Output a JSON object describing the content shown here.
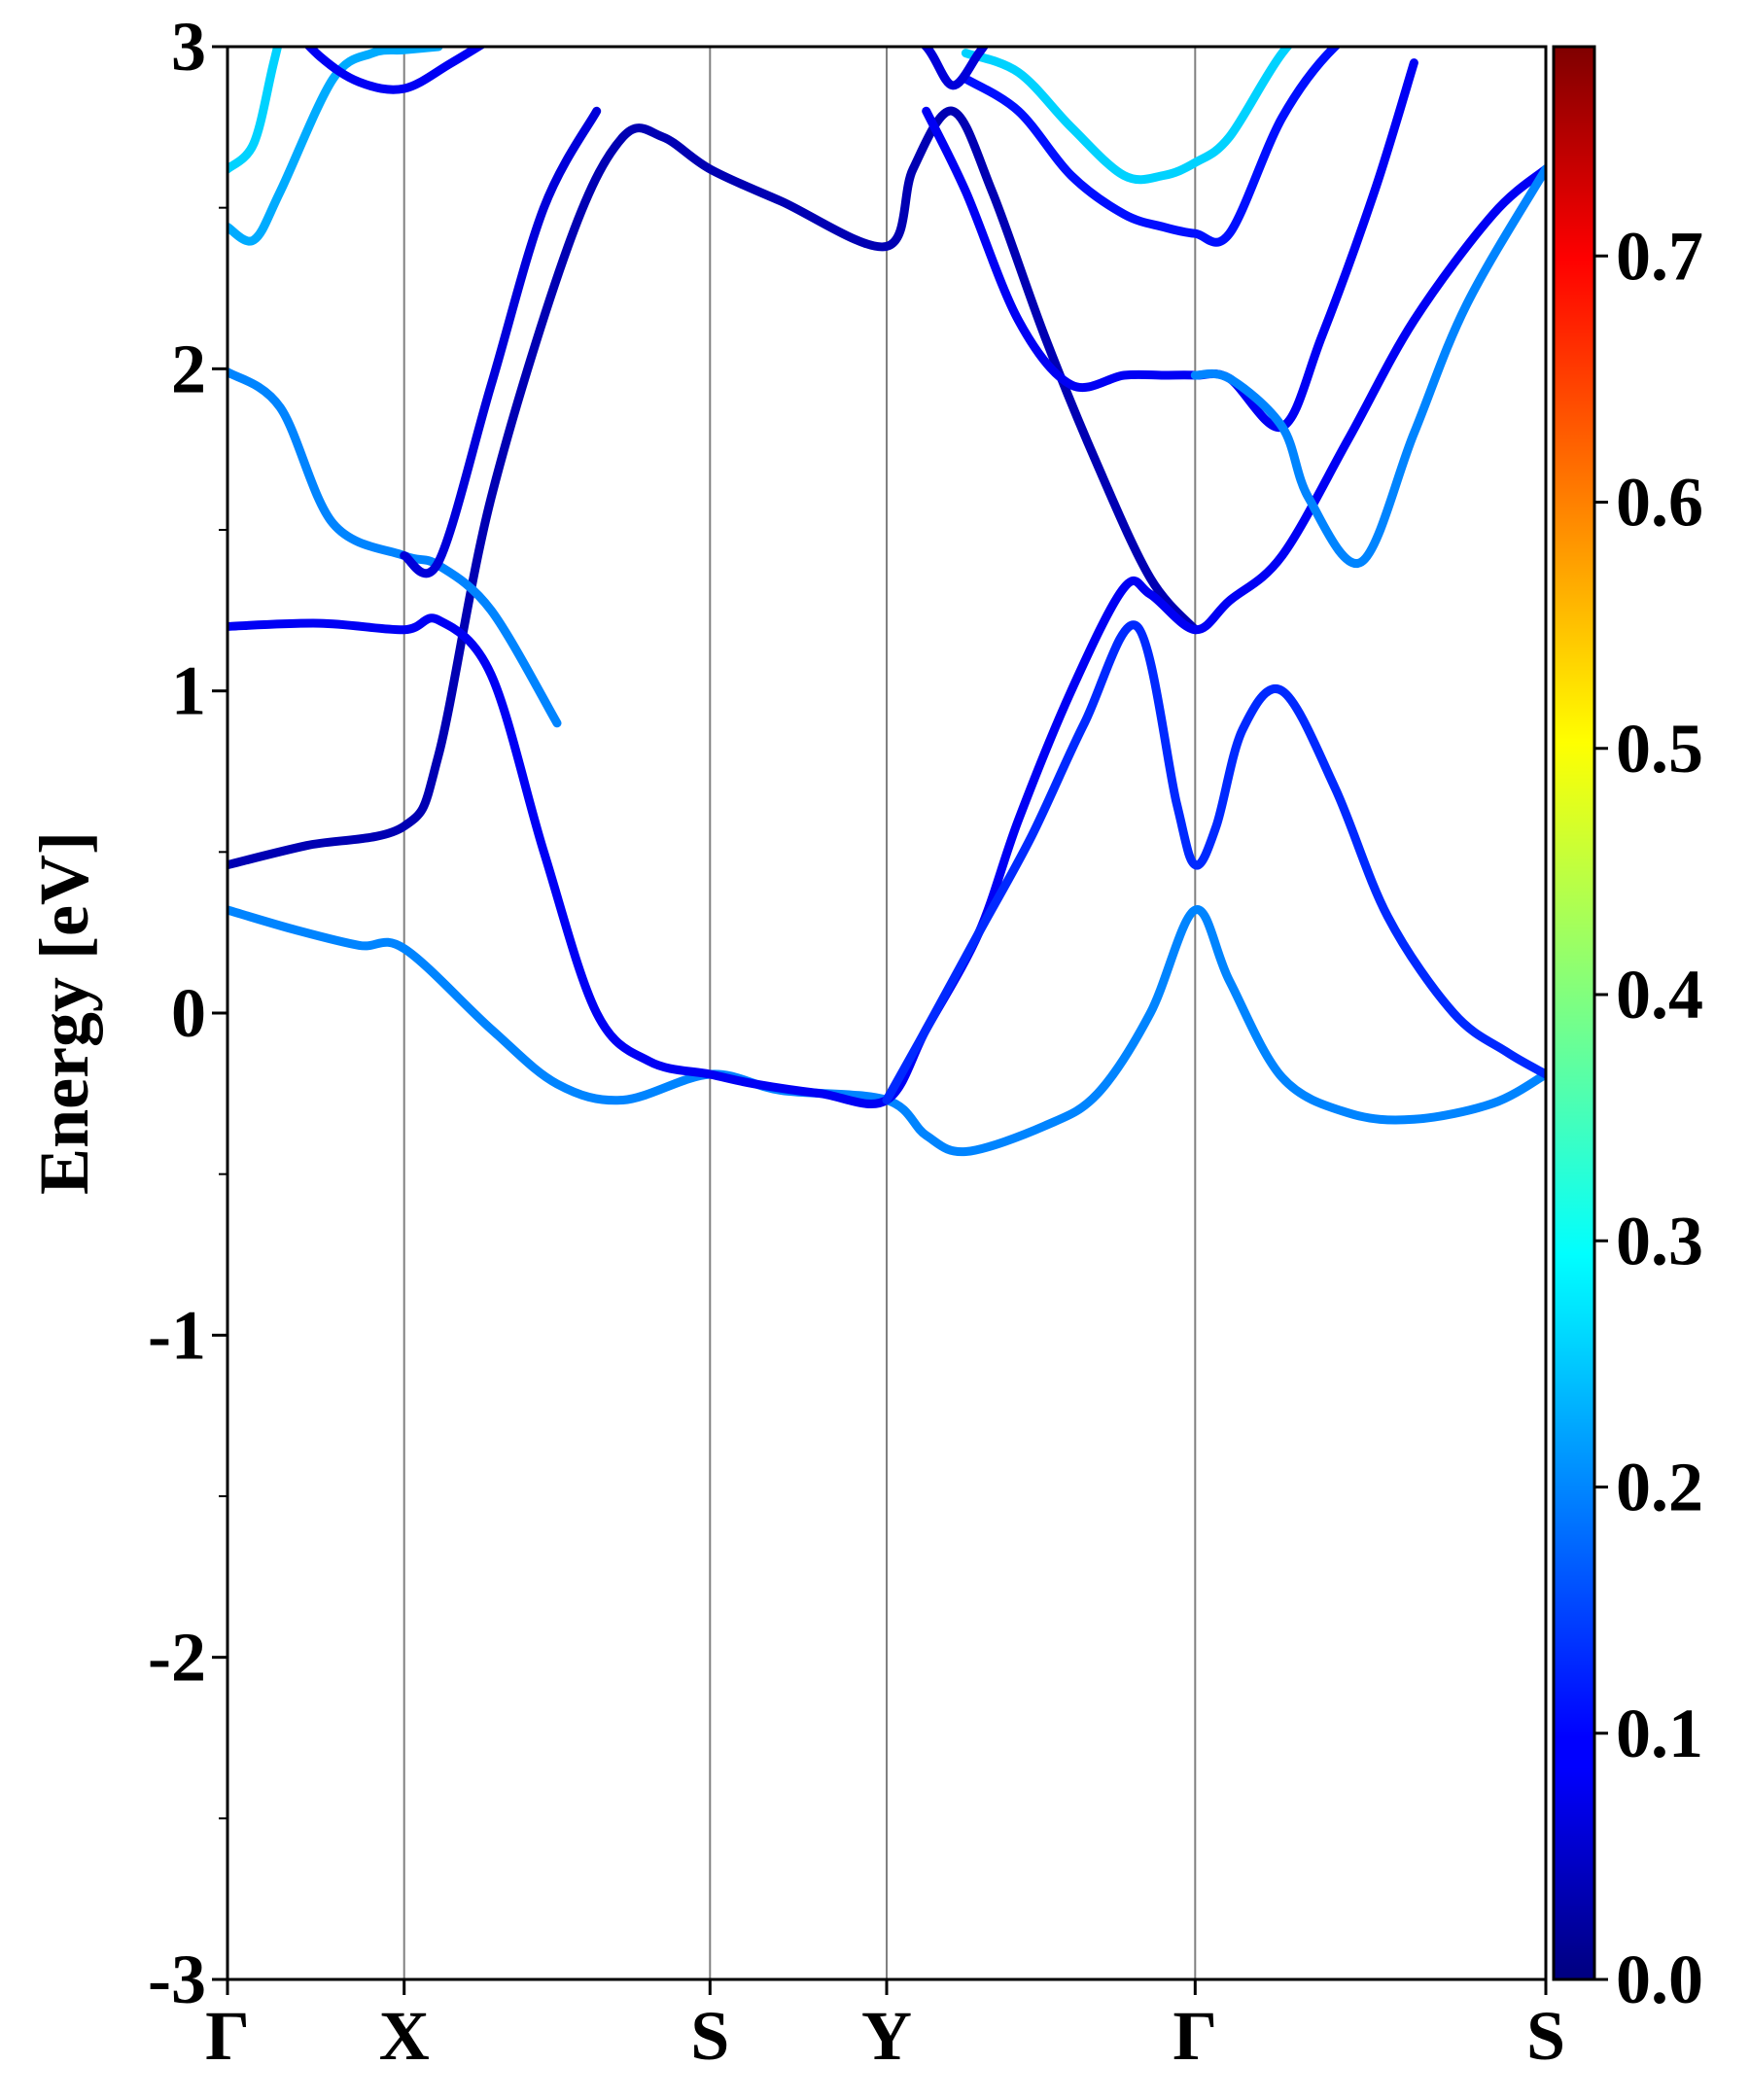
{
  "chart_data": {
    "type": "line",
    "ylabel": "Energy [eV]",
    "ylim": [
      -3,
      3
    ],
    "yticks": [
      -3,
      -2,
      -1,
      0,
      1,
      2,
      3
    ],
    "yticks_minor": [
      -2.5,
      -1.5,
      -0.5,
      0.5,
      1.5,
      2.5
    ],
    "ytick_labels": [
      "-3",
      "-2",
      "-1",
      "0",
      "1",
      "2",
      "3"
    ],
    "xlim": [
      0,
      1
    ],
    "high_symmetry_points": [
      {
        "label": "Γ",
        "x": 0.0
      },
      {
        "label": "X",
        "x": 0.134
      },
      {
        "label": "S",
        "x": 0.366
      },
      {
        "label": "Y",
        "x": 0.5
      },
      {
        "label": "Γ",
        "x": 0.734
      },
      {
        "label": "S",
        "x": 1.0
      }
    ],
    "colorbar": {
      "colormap": "jet",
      "range": [
        0.0,
        0.785
      ],
      "ticks": [
        0.0,
        0.1,
        0.2,
        0.3,
        0.4,
        0.5,
        0.6,
        0.7
      ],
      "tick_labels": [
        "0.0",
        "0.1",
        "0.2",
        "0.3",
        "0.4",
        "0.5",
        "0.6",
        "0.7"
      ]
    },
    "series": [
      {
        "weight": 0.2,
        "x": [
          0.0,
          0.05,
          0.1,
          0.134,
          0.2,
          0.25,
          0.3,
          0.366,
          0.42,
          0.5,
          0.53,
          0.56,
          0.62,
          0.66,
          0.7,
          0.734,
          0.76,
          0.8,
          0.85,
          0.9,
          0.96,
          1.0
        ],
        "y": [
          0.32,
          0.26,
          0.21,
          0.2,
          -0.05,
          -0.22,
          -0.27,
          -0.19,
          -0.24,
          -0.27,
          -0.38,
          -0.43,
          -0.35,
          -0.25,
          0.0,
          0.32,
          0.1,
          -0.2,
          -0.31,
          -0.33,
          -0.28,
          -0.19
        ]
      },
      {
        "weight": 0.04,
        "x": [
          0.0,
          0.06,
          0.134,
          0.16,
          0.2,
          0.26,
          0.3,
          0.33,
          0.366,
          0.42,
          0.5,
          0.52,
          0.55,
          0.58,
          0.62,
          0.66,
          0.7,
          0.734
        ],
        "y": [
          0.46,
          0.52,
          0.58,
          0.8,
          1.6,
          2.4,
          2.72,
          2.72,
          2.62,
          2.52,
          2.38,
          2.62,
          2.8,
          2.55,
          2.1,
          1.7,
          1.35,
          1.19
        ]
      },
      {
        "weight": 0.09,
        "x": [
          0.0,
          0.07,
          0.134,
          0.16,
          0.2,
          0.24,
          0.28,
          0.32,
          0.366,
          0.4,
          0.45,
          0.5,
          0.53,
          0.57,
          0.6,
          0.64,
          0.68,
          0.7,
          0.734,
          0.76,
          0.8,
          0.85,
          0.9,
          0.96,
          1.0
        ],
        "y": [
          1.2,
          1.21,
          1.19,
          1.22,
          1.05,
          0.5,
          0.0,
          -0.15,
          -0.19,
          -0.22,
          -0.25,
          -0.27,
          -0.05,
          0.25,
          0.6,
          1.0,
          1.32,
          1.3,
          1.19,
          1.28,
          1.42,
          1.78,
          2.15,
          2.48,
          2.62
        ]
      },
      {
        "weight": 0.13,
        "x": [
          0.5,
          0.53,
          0.57,
          0.61,
          0.65,
          0.69,
          0.72,
          0.734,
          0.75,
          0.77,
          0.8,
          0.84,
          0.88,
          0.93,
          0.97,
          1.0
        ],
        "y": [
          -0.27,
          -0.05,
          0.25,
          0.55,
          0.9,
          1.2,
          0.65,
          0.46,
          0.58,
          0.88,
          1.0,
          0.7,
          0.3,
          0.0,
          -0.12,
          -0.19
        ]
      },
      {
        "weight": 0.2,
        "x": [
          0.0,
          0.04,
          0.08,
          0.134,
          0.16,
          0.2,
          0.25
        ],
        "y": [
          1.99,
          1.88,
          1.52,
          1.42,
          1.39,
          1.25,
          0.9
        ]
      },
      {
        "weight": 0.07,
        "x": [
          0.134,
          0.16,
          0.2,
          0.24,
          0.28
        ],
        "y": [
          1.42,
          1.4,
          1.95,
          2.5,
          2.8
        ]
      },
      {
        "weight": 0.09,
        "x": [
          0.53,
          0.56,
          0.6,
          0.64,
          0.68,
          0.71,
          0.734,
          0.76,
          0.8,
          0.83,
          0.87,
          0.9
        ],
        "y": [
          2.8,
          2.55,
          2.15,
          1.95,
          1.98,
          1.98,
          1.98,
          1.97,
          1.82,
          2.1,
          2.55,
          2.95
        ]
      },
      {
        "weight": 0.2,
        "x": [
          0.734,
          0.76,
          0.8,
          0.82,
          0.86,
          0.9,
          0.94,
          1.0
        ],
        "y": [
          1.98,
          1.97,
          1.82,
          1.6,
          1.4,
          1.8,
          2.2,
          2.62
        ]
      },
      {
        "weight": 0.11,
        "x": [
          0.56,
          0.6,
          0.64,
          0.68,
          0.71,
          0.734,
          0.76,
          0.8,
          0.84,
          0.88
        ],
        "y": [
          2.9,
          2.8,
          2.6,
          2.48,
          2.44,
          2.42,
          2.42,
          2.78,
          3.0,
          3.1
        ]
      },
      {
        "weight": 0.23,
        "x": [
          0.0,
          0.02,
          0.04,
          0.08,
          0.11,
          0.134,
          0.16
        ],
        "y": [
          2.44,
          2.4,
          2.55,
          2.9,
          2.98,
          2.99,
          3.0
        ]
      },
      {
        "weight": 0.26,
        "x": [
          0.0,
          0.02,
          0.035,
          0.05
        ],
        "y": [
          2.62,
          2.7,
          2.95,
          3.2
        ]
      },
      {
        "weight": 0.26,
        "x": [
          0.56,
          0.6,
          0.64,
          0.68,
          0.71,
          0.734,
          0.76,
          0.8,
          0.84
        ],
        "y": [
          2.98,
          2.92,
          2.75,
          2.6,
          2.6,
          2.64,
          2.72,
          2.98,
          3.15
        ]
      },
      {
        "weight": 0.09,
        "x": [
          0.04,
          0.07,
          0.1,
          0.134,
          0.17,
          0.21
        ],
        "y": [
          3.1,
          2.97,
          2.89,
          2.87,
          2.95,
          3.05
        ]
      },
      {
        "weight": 0.07,
        "x": [
          0.5,
          0.53,
          0.55,
          0.57,
          0.59
        ],
        "y": [
          3.1,
          3.0,
          2.88,
          2.98,
          3.1
        ]
      }
    ]
  }
}
